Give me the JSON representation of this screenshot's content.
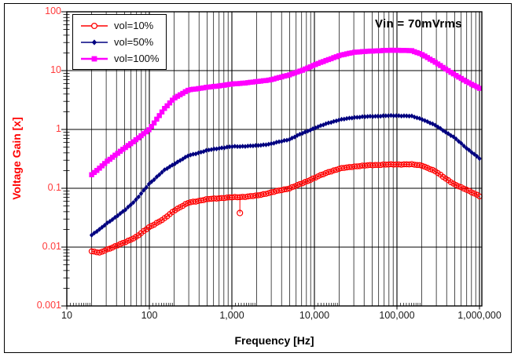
{
  "window": {
    "background": "#ffffff",
    "frame_color": "#000000"
  },
  "chart_data": {
    "type": "line",
    "title": "",
    "xlabel": "Frequency [Hz]",
    "ylabel": "Voltage Gain [x]",
    "annotation": "Vin = 70mVrms",
    "x_scale": "log",
    "y_scale": "log",
    "xlim": [
      10,
      1070000
    ],
    "ylim": [
      0.001,
      100
    ],
    "grid": "vertical log minor+major, horizontal major only",
    "grid_color": "#000000",
    "legend_position": "top-left",
    "x_ticks": [
      {
        "label": "10",
        "value": 10
      },
      {
        "label": "100",
        "value": 100
      },
      {
        "label": "1,000",
        "value": 1000
      },
      {
        "label": "10,000",
        "value": 10000
      },
      {
        "label": "100,000",
        "value": 100000
      },
      {
        "label": "1,000,000",
        "value": 1000000
      }
    ],
    "y_ticks": [
      {
        "label": "100",
        "value": 100
      },
      {
        "label": "10",
        "value": 10
      },
      {
        "label": "1",
        "value": 1
      },
      {
        "label": "0.1",
        "value": 0.1
      },
      {
        "label": "0.01",
        "value": 0.01
      },
      {
        "label": "0.001",
        "value": 0.001
      }
    ],
    "x": [
      20,
      25,
      30,
      40,
      50,
      70,
      100,
      150,
      200,
      300,
      500,
      700,
      1000,
      1500,
      2000,
      3000,
      5000,
      7000,
      10000,
      15000,
      20000,
      30000,
      50000,
      70000,
      100000,
      150000,
      200000,
      300000,
      500000,
      700000,
      1000000
    ],
    "series": [
      {
        "name": "vol=10%",
        "color": "#ff0000",
        "marker": "circle-open",
        "values": [
          0.0085,
          0.008,
          0.009,
          0.0105,
          0.012,
          0.015,
          0.022,
          0.03,
          0.042,
          0.057,
          0.065,
          0.068,
          0.07,
          0.072,
          0.075,
          0.085,
          0.1,
          0.12,
          0.15,
          0.19,
          0.215,
          0.235,
          0.248,
          0.252,
          0.255,
          0.255,
          0.245,
          0.19,
          0.115,
          0.095,
          0.073
        ],
        "outlier": {
          "x": 1250,
          "y": 0.038
        }
      },
      {
        "name": "vol=50%",
        "color": "#000080",
        "marker": "diamond",
        "values": [
          0.016,
          0.02,
          0.025,
          0.033,
          0.042,
          0.065,
          0.12,
          0.2,
          0.26,
          0.36,
          0.44,
          0.48,
          0.51,
          0.52,
          0.53,
          0.57,
          0.68,
          0.85,
          1.05,
          1.3,
          1.45,
          1.6,
          1.67,
          1.7,
          1.72,
          1.68,
          1.5,
          1.15,
          0.72,
          0.48,
          0.32
        ]
      },
      {
        "name": "vol=100%",
        "color": "#ff00ff",
        "marker": "square",
        "values": [
          0.17,
          0.22,
          0.28,
          0.38,
          0.48,
          0.68,
          1.0,
          2.2,
          3.4,
          4.7,
          5.2,
          5.5,
          5.9,
          6.2,
          6.5,
          7.0,
          8.5,
          10.0,
          12.5,
          15.5,
          18.0,
          20.5,
          21.5,
          22.0,
          22.2,
          21.8,
          19.0,
          13.5,
          8.5,
          6.5,
          5.0
        ]
      }
    ]
  },
  "colors": {
    "y_tick_text": "#ff3b3b",
    "y_axis_title": "#ff0000",
    "x_tick_text": "#1a1a1a",
    "annotation_text": "#000000"
  }
}
